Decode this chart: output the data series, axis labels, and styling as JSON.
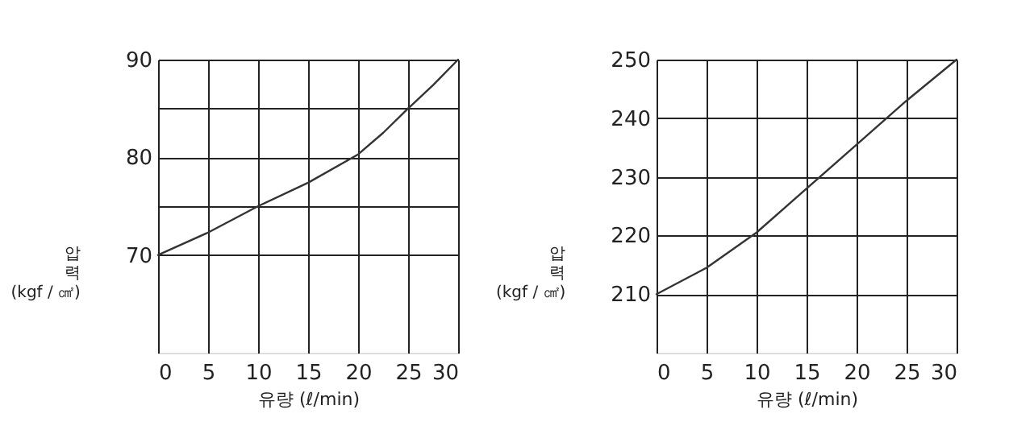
{
  "chart_data": [
    {
      "type": "line",
      "xlabel": "유량 (ℓ/min)",
      "ylabel": "압력 (kgf / ㎠)",
      "x": [
        0,
        5,
        10,
        15,
        20,
        22.5,
        25,
        27.5,
        30
      ],
      "series": [
        {
          "color": "#333333",
          "values": [
            70,
            72.3,
            75,
            77.4,
            80.3,
            82.5,
            85,
            87.4,
            90
          ]
        }
      ],
      "xlim": [
        0,
        30
      ],
      "xticks": [
        0,
        5,
        10,
        15,
        20,
        25,
        30
      ],
      "ylim": [
        60,
        90
      ],
      "yticks": [
        70,
        {
          "value": 75,
          "label": null
        },
        80,
        {
          "value": 85,
          "label": null
        },
        90
      ],
      "grid": true,
      "marker": "none",
      "line_style": "solid"
    },
    {
      "type": "line",
      "xlabel": "유량 (ℓ/min)",
      "ylabel": "압력 (kgf / ㎠)",
      "x": [
        0,
        5,
        10,
        15,
        20,
        25,
        30
      ],
      "series": [
        {
          "color": "#333333",
          "values": [
            210,
            214.5,
            220.5,
            228,
            235.5,
            243,
            250
          ]
        }
      ],
      "xlim": [
        0,
        30
      ],
      "xticks": [
        0,
        5,
        10,
        15,
        20,
        25,
        30
      ],
      "ylim": [
        200,
        250
      ],
      "yticks": [
        210,
        220,
        230,
        240,
        250
      ],
      "grid": true,
      "marker": "none",
      "line_style": "solid"
    }
  ]
}
